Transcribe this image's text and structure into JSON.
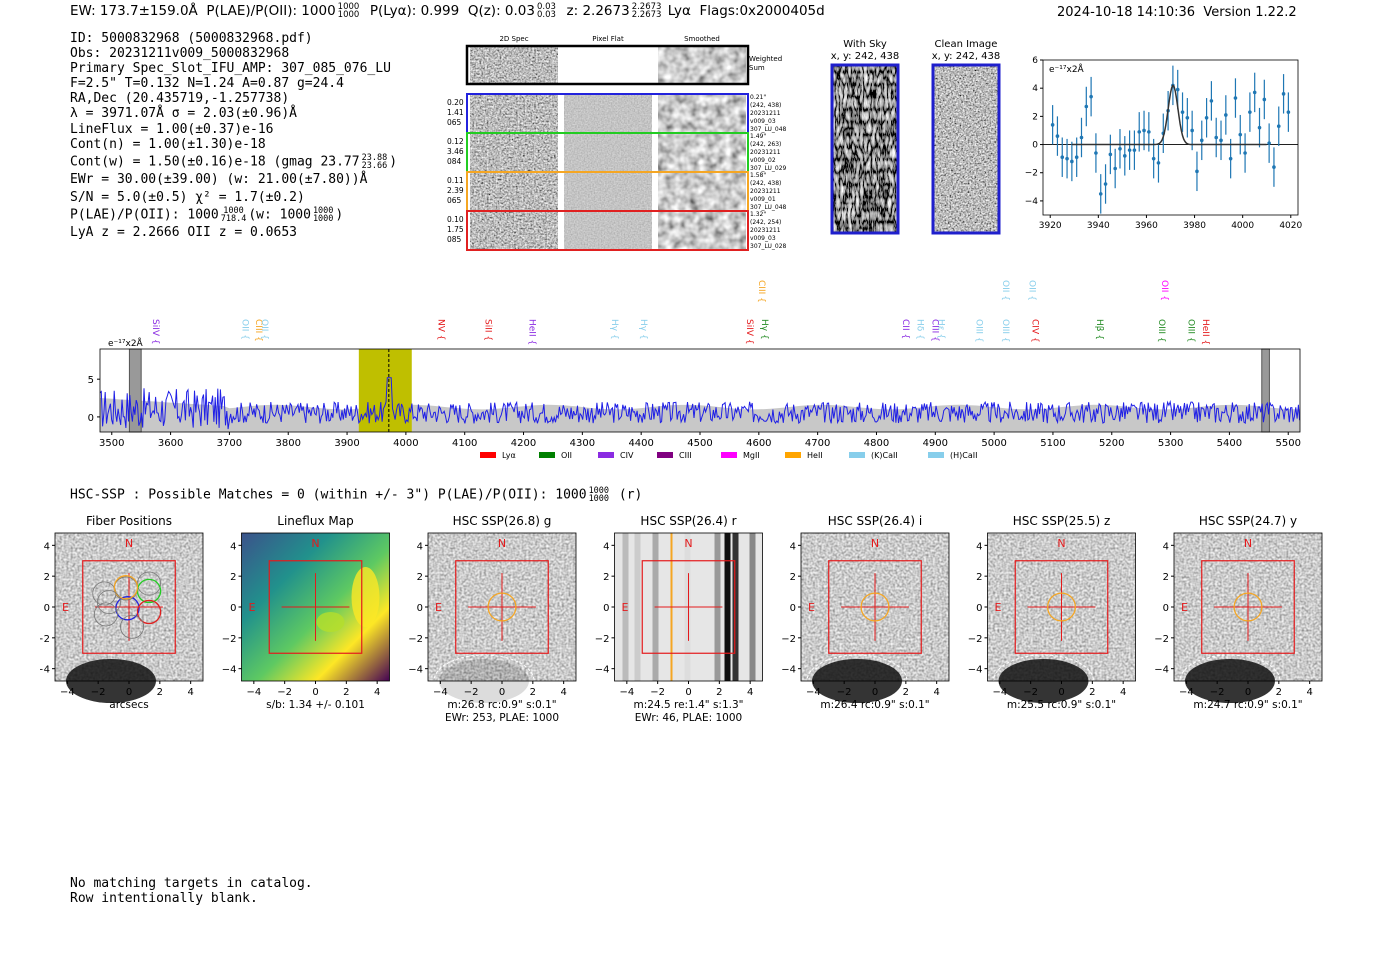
{
  "header": {
    "ew": "EW: 173.7±159.0Å",
    "plae_label": "P(LAE)/P(OII): 1000",
    "plae_hi": "1000",
    "plae_lo": "1000",
    "plya": "P(Lyα): 0.999",
    "qz_label": "Q(z): 0.03",
    "qz_hi": "0.03",
    "qz_lo": "0.03",
    "z_label": "z: 2.2673",
    "z_hi": "2.2673",
    "z_lo": "2.2673",
    "z_line": "Lyα",
    "flags": "Flags:0x2000405d",
    "timestamp": "2024-10-18 14:10:36",
    "version": "Version 1.22.2"
  },
  "info": {
    "lines": [
      "ID: 5000832968 (5000832968.pdf)",
      "Obs: 20231211v009_5000832968",
      "Primary Spec_Slot_IFU_AMP: 307_085_076_LU",
      "F=2.5\"  T=0.132  N=1.24  A=0.87  g=24.4",
      "RA,Dec (20.435719,-1.257738)",
      "λ = 3971.07Å  σ = 2.03(±0.96)Å",
      "LineFlux = 1.00(±0.37)e-16",
      "Cont(n) = 1.00(±1.30)e-18"
    ],
    "contw": "Cont(w) = 1.50(±0.16)e-18 (gmag 23.77",
    "contw_hi": "23.88",
    "contw_lo": "23.66",
    "contw_end": ")",
    "ewr": "EWr = 30.00(±39.00) (w: 21.00(±7.80))Å",
    "sn": "S/N = 5.0(±0.5)  χ² = 1.7(±0.2)",
    "plae": "P(LAE)/P(OII): 1000",
    "plae_hi": "1000",
    "plae_lo": "718.4",
    "plae_w": "(w: 1000",
    "plae_w_hi": "1000",
    "plae_w_lo": "1000",
    "plae_w_end": ")",
    "lya": "LyA z = 2.2666  OII z = 0.0653"
  },
  "cutouts": {
    "headers": [
      "2D Spec",
      "Pixel Flat",
      "Smoothed"
    ],
    "weighted": [
      "Weighted",
      "Sum"
    ],
    "rows": [
      {
        "left": [
          "0.20",
          "1.41",
          "065"
        ],
        "right": [
          "0.21\"",
          "(242, 438)",
          "20231211",
          "v009_03",
          "307_LU_048"
        ],
        "color": "#2222dd"
      },
      {
        "left": [
          "0.12",
          "3.46",
          "084"
        ],
        "right": [
          "1.49\"",
          "(242, 263)",
          "20231211",
          "v009_02",
          "307_LU_029"
        ],
        "color": "#22cc22"
      },
      {
        "left": [
          "0.11",
          "2.39",
          "065"
        ],
        "right": [
          "1.58\"",
          "(242, 438)",
          "20231211",
          "v009_01",
          "307_LU_048"
        ],
        "color": "#f5a623"
      },
      {
        "left": [
          "0.10",
          "1.75",
          "085"
        ],
        "right": [
          "1.32\"",
          "(242, 254)",
          "20231211",
          "v009_03",
          "307_LU_028"
        ],
        "color": "#e02020"
      }
    ],
    "with_sky": [
      "With Sky",
      "x, y: 242, 438"
    ],
    "clean": [
      "Clean Image",
      "x, y: 242, 438"
    ]
  },
  "colors": {
    "blue": "#1f1fe6",
    "fit_blue": "#1f77b4",
    "olive": "#bfbf00",
    "red": "#e41a1c"
  },
  "zoom_chart": {
    "type": "scatter",
    "ylabel": "e⁻¹⁷x2Å",
    "xlim": [
      3917,
      4023
    ],
    "ylim": [
      -5,
      6
    ],
    "xticks": [
      "3920",
      "3940",
      "3960",
      "3980",
      "4000",
      "4020"
    ],
    "yticks": [
      "-4",
      "-2",
      "0",
      "2",
      "4",
      "6"
    ],
    "points": [
      [
        3921,
        1.4
      ],
      [
        3923,
        0.6
      ],
      [
        3925,
        -0.9
      ],
      [
        3927,
        -1.0
      ],
      [
        3929,
        -1.2
      ],
      [
        3931,
        -0.9
      ],
      [
        3933,
        0.5
      ],
      [
        3935,
        2.7
      ],
      [
        3937,
        3.4
      ],
      [
        3939,
        -0.6
      ],
      [
        3941,
        -3.5
      ],
      [
        3943,
        -2.8
      ],
      [
        3945,
        -0.7
      ],
      [
        3947,
        -1.7
      ],
      [
        3949,
        -0.3
      ],
      [
        3951,
        -0.8
      ],
      [
        3953,
        -0.4
      ],
      [
        3955,
        -0.4
      ],
      [
        3957,
        0.9
      ],
      [
        3959,
        1.0
      ],
      [
        3961,
        0.9
      ],
      [
        3963,
        -1.0
      ],
      [
        3965,
        -1.3
      ],
      [
        3967,
        0.8
      ],
      [
        3969,
        2.4
      ],
      [
        3971,
        4.2
      ],
      [
        3973,
        3.9
      ],
      [
        3975,
        2.3
      ],
      [
        3977,
        1.9
      ],
      [
        3979,
        1.0
      ],
      [
        3981,
        -1.9
      ],
      [
        3983,
        0.3
      ],
      [
        3985,
        1.9
      ],
      [
        3987,
        3.1
      ],
      [
        3989,
        0.5
      ],
      [
        3991,
        0.3
      ],
      [
        3993,
        2.1
      ],
      [
        3995,
        -1.0
      ],
      [
        3997,
        3.3
      ],
      [
        3999,
        0.7
      ],
      [
        4001,
        -0.6
      ],
      [
        4003,
        2.3
      ],
      [
        4005,
        3.7
      ],
      [
        4007,
        1.2
      ],
      [
        4009,
        3.2
      ],
      [
        4011,
        0.1
      ],
      [
        4013,
        -1.6
      ],
      [
        4015,
        1.3
      ],
      [
        4017,
        3.6
      ],
      [
        4019,
        2.3
      ]
    ],
    "fit": {
      "amplitude": 4.2,
      "center": 3971.07,
      "sigma": 2.03
    }
  },
  "spectrum_chart": {
    "type": "line",
    "ylabel": "e⁻¹⁷x2Å",
    "xlim": [
      3480,
      5520
    ],
    "ylim": [
      -2,
      9
    ],
    "xticks": [
      "3500",
      "3600",
      "3700",
      "3800",
      "3900",
      "4000",
      "4100",
      "4200",
      "4300",
      "4400",
      "4500",
      "4600",
      "4700",
      "4800",
      "4900",
      "5000",
      "5100",
      "5200",
      "5300",
      "5400",
      "5500"
    ],
    "yticks": [
      "0",
      "5"
    ],
    "highlight": [
      3920,
      4010
    ],
    "fit_line": 3971,
    "masks": [
      [
        3530,
        3550
      ],
      [
        5455,
        5468
      ]
    ],
    "lines": [
      {
        "label": "SiIV",
        "x": 3565,
        "color": "#8a2be2",
        "row": 0
      },
      {
        "label": "OII",
        "x": 3717,
        "color": "#87ceeb",
        "row": 0
      },
      {
        "label": "CIII",
        "x": 3740,
        "color": "#f5a623",
        "row": 0
      },
      {
        "label": "OII",
        "x": 3750,
        "color": "#87ceeb",
        "row": 0
      },
      {
        "label": "NV",
        "x": 4050,
        "color": "#e41a1c",
        "row": 0
      },
      {
        "label": "SiII",
        "x": 4130,
        "color": "#e41a1c",
        "row": 0
      },
      {
        "label": "HeII",
        "x": 4205,
        "color": "#8a2be2",
        "row": 0
      },
      {
        "label": "Hγ",
        "x": 4345,
        "color": "#87ceeb",
        "row": 0
      },
      {
        "label": "Hγ",
        "x": 4395,
        "color": "#87ceeb",
        "row": 0
      },
      {
        "label": "SiIV",
        "x": 4575,
        "color": "#e41a1c",
        "row": 0
      },
      {
        "label": "CIII",
        "x": 4595,
        "color": "#f5a623",
        "row": 1
      },
      {
        "label": "Hγ",
        "x": 4600,
        "color": "#228b22",
        "row": 0
      },
      {
        "label": "CII",
        "x": 4840,
        "color": "#8a2be2",
        "row": 0
      },
      {
        "label": "Hδ",
        "x": 4865,
        "color": "#87ceeb",
        "row": 0
      },
      {
        "label": "CIII",
        "x": 4890,
        "color": "#8a2be2",
        "row": 0
      },
      {
        "label": "Hε",
        "x": 4900,
        "color": "#87ceeb",
        "row": 0
      },
      {
        "label": "OIII",
        "x": 4965,
        "color": "#87ceeb",
        "row": 0
      },
      {
        "label": "OIII",
        "x": 5010,
        "color": "#87ceeb",
        "row": 0
      },
      {
        "label": "OII",
        "x": 5010,
        "color": "#87ceeb",
        "row": 1
      },
      {
        "label": "OII",
        "x": 5055,
        "color": "#87ceeb",
        "row": 1
      },
      {
        "label": "CIV",
        "x": 5060,
        "color": "#e41a1c",
        "row": 0
      },
      {
        "label": "Hβ",
        "x": 5170,
        "color": "#228b22",
        "row": 0
      },
      {
        "label": "OIII",
        "x": 5275,
        "color": "#228b22",
        "row": 0
      },
      {
        "label": "OII",
        "x": 5280,
        "color": "#ff00ff",
        "row": 1
      },
      {
        "label": "OIII",
        "x": 5325,
        "color": "#228b22",
        "row": 0
      },
      {
        "label": "HeII",
        "x": 5350,
        "color": "#e41a1c",
        "row": 0
      }
    ],
    "legend": [
      {
        "label": "Lyα",
        "color": "#ff0000"
      },
      {
        "label": "OII",
        "color": "#008000"
      },
      {
        "label": "CIV",
        "color": "#8a2be2"
      },
      {
        "label": "CIII",
        "color": "#800080"
      },
      {
        "label": "MgII",
        "color": "#ff00ff"
      },
      {
        "label": "HeII",
        "color": "#ffa500"
      },
      {
        "label": "(K)CaII",
        "color": "#87ceeb"
      },
      {
        "label": "(H)CaII",
        "color": "#87ceeb"
      }
    ]
  },
  "hsc": {
    "title": "HSC-SSP : Possible Matches = 0 (within +/- 3\")  P(LAE)/P(OII): 1000",
    "title_hi": "1000",
    "title_lo": "1000",
    "title_end": "(r)",
    "ticks": [
      "-4",
      "-2",
      "0",
      "2",
      "4"
    ],
    "north": "N",
    "east": "E",
    "panels": [
      {
        "title": "Fiber Positions",
        "captions": [
          "arcsecs"
        ],
        "kind": "fiber"
      },
      {
        "title": "Lineflux Map",
        "captions": [
          "s/b: 1.34 +/- 0.101"
        ],
        "kind": "flux"
      },
      {
        "title": "HSC SSP(26.8) g",
        "captions": [
          "m:26.8 rc:0.9\"  s:0.1\"",
          "EWr: 253, PLAE: 1000"
        ],
        "kind": "g"
      },
      {
        "title": "HSC SSP(26.4) r",
        "captions": [
          "m:24.5  re:1.4\"  s:1.3\"",
          "EWr: 46, PLAE: 1000"
        ],
        "kind": "r"
      },
      {
        "title": "HSC SSP(26.4) i",
        "captions": [
          "m:26.4 rc:0.9\"  s:0.1\""
        ],
        "kind": "i"
      },
      {
        "title": "HSC SSP(25.5) z",
        "captions": [
          "m:25.5 rc:0.9\"  s:0.1\""
        ],
        "kind": "z"
      },
      {
        "title": "HSC SSP(24.7) y",
        "captions": [
          "m:24.7 rc:0.9\"  s:0.1\""
        ],
        "kind": "y"
      }
    ]
  },
  "footer": [
    "No matching targets in catalog.",
    "Row intentionally blank."
  ]
}
